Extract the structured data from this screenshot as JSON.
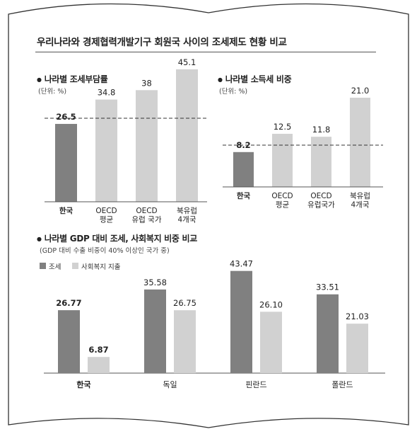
{
  "title": "우리나라와 경제협력개발기구 회원국 사이의 조세제도 현황 비교",
  "colors": {
    "korea": "#808080",
    "others": "#d1d1d1",
    "text": "#222222"
  },
  "chart_data": [
    {
      "type": "bar",
      "title": "나라별 조세부담률",
      "unit": "(단위: %)",
      "categories": [
        [
          "한국"
        ],
        [
          "OECD",
          "평균"
        ],
        [
          "OECD",
          "유럽 국가"
        ],
        [
          "북유럽",
          "4개국"
        ]
      ],
      "values": [
        26.5,
        34.8,
        38,
        45.1
      ],
      "value_labels": [
        "26.5",
        "34.8",
        "38",
        "45.1"
      ],
      "reference_line": "dashed",
      "grid": false
    },
    {
      "type": "bar",
      "title": "나라별 소득세 비중",
      "unit": "(단위: %)",
      "categories": [
        [
          "한국"
        ],
        [
          "OECD",
          "평균"
        ],
        [
          "OECD",
          "유럽국가"
        ],
        [
          "북유럽",
          "4개국"
        ]
      ],
      "values": [
        8.2,
        12.5,
        11.8,
        21.0
      ],
      "value_labels": [
        "8.2",
        "12.5",
        "11.8",
        "21.0"
      ],
      "reference_line": "dashed",
      "grid": false
    },
    {
      "type": "bar",
      "title": "나라별 GDP 대비 조세, 사회복지 비중 비교",
      "subtitle": "(GDP 대비 수출 비중이 40% 이상인 국가 중)",
      "categories": [
        "한국",
        "독일",
        "핀란드",
        "폴란드"
      ],
      "series": [
        {
          "name": "조세",
          "values": [
            26.77,
            35.58,
            43.47,
            33.51
          ],
          "labels": [
            "26.77",
            "35.58",
            "43.47",
            "33.51"
          ]
        },
        {
          "name": "사회복지 지출",
          "values": [
            6.87,
            26.75,
            26.1,
            21.03
          ],
          "labels": [
            "6.87",
            "26.75",
            "26.10",
            "21.03"
          ]
        }
      ],
      "legend_position": "top-left",
      "grid": false
    }
  ]
}
